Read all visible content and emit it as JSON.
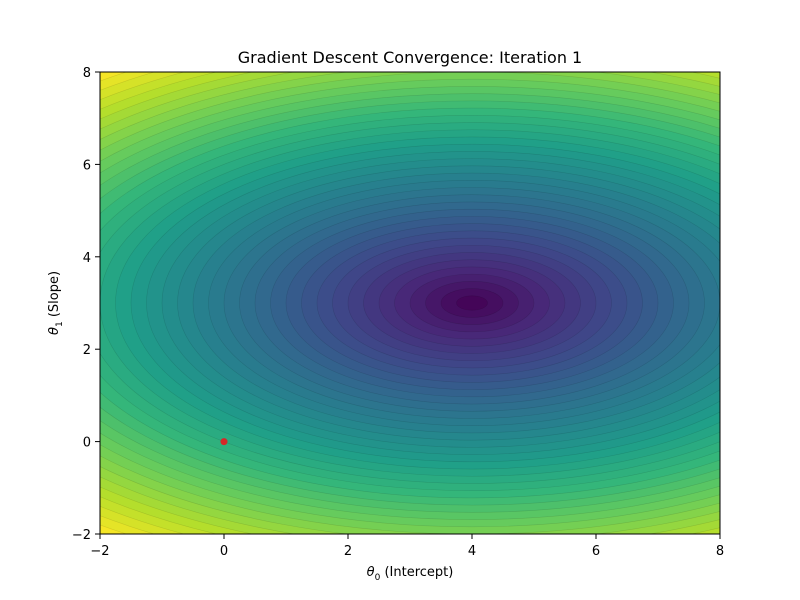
{
  "chart_data": {
    "type": "contour",
    "title": "Gradient Descent Convergence: Iteration 1",
    "xlabel": {
      "symbol": "θ",
      "subscript": "0",
      "text": " (Intercept)"
    },
    "ylabel": {
      "symbol": "θ",
      "subscript": "1",
      "text": " (Slope)"
    },
    "xlim": [
      -2,
      8
    ],
    "ylim": [
      -2,
      8
    ],
    "xticks": [
      -2,
      0,
      2,
      4,
      6,
      8
    ],
    "yticks": [
      -2,
      0,
      2,
      4,
      6,
      8
    ],
    "xtick_labels": [
      "−2",
      "0",
      "2",
      "4",
      "6",
      "8"
    ],
    "ytick_labels": [
      "−2",
      "0",
      "2",
      "4",
      "6",
      "8"
    ],
    "grid": false,
    "colormap": "viridis",
    "cost_surface": {
      "minimum": {
        "theta0": 4,
        "theta1": 3
      },
      "y_scale_factor": 1.6,
      "level_count": 40
    },
    "series": [
      {
        "marker": "point",
        "color": "#d62728",
        "points": [
          {
            "x": 0,
            "y": 0
          }
        ]
      }
    ]
  }
}
